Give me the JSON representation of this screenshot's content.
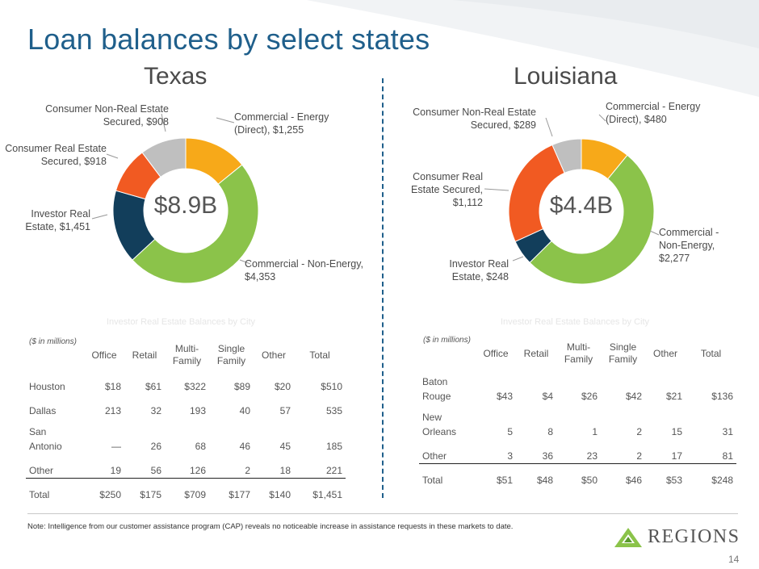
{
  "slide_title": "Loan balances by select states",
  "texas": {
    "title": "Texas",
    "center_label": "$8.9B",
    "chart_data": {
      "type": "pie",
      "slices": [
        {
          "label": "Commercial - Energy (Direct), $1,255",
          "value": 1255,
          "color": "#f7a919"
        },
        {
          "label": "Commercial - Non-Energy, $4,353",
          "value": 4353,
          "color": "#8bc34a"
        },
        {
          "label": "Investor Real Estate, $1,451",
          "value": 1451,
          "color": "#123e5b"
        },
        {
          "label": "Consumer Real Estate Secured, $918",
          "value": 918,
          "color": "#f15a22"
        },
        {
          "label": "Consumer Non-Real Estate Secured, $908",
          "value": 908,
          "color": "#bfbfbf"
        }
      ]
    },
    "labels": {
      "energy": [
        "Commercial - Energy",
        "(Direct), $1,255"
      ],
      "nonenergy": [
        "Commercial - Non-Energy,",
        "$4,353"
      ],
      "investor": [
        "Investor Real",
        "Estate, $1,451"
      ],
      "cre": [
        "Consumer Real Estate",
        "Secured, $918"
      ],
      "cnre": [
        "Consumer Non-Real Estate",
        "Secured, $908"
      ]
    },
    "table_caption": "Investor Real Estate Balances by City",
    "units": "($ in millions)",
    "headers": [
      "Office",
      "Retail",
      "Multi-\nFamily",
      "Single\nFamily",
      "Other",
      "Total"
    ],
    "rows": [
      {
        "city": [
          "Houston"
        ],
        "values": [
          "$18",
          "$61",
          "$322",
          "$89",
          "$20",
          "$510"
        ]
      },
      {
        "city": [
          "Dallas"
        ],
        "values": [
          "213",
          "32",
          "193",
          "40",
          "57",
          "535"
        ]
      },
      {
        "city": [
          "San",
          "Antonio"
        ],
        "values": [
          "—",
          "26",
          "68",
          "46",
          "45",
          "185"
        ]
      },
      {
        "city": [
          "Other"
        ],
        "values": [
          "19",
          "56",
          "126",
          "2",
          "18",
          "221"
        ]
      },
      {
        "city": [
          "Total"
        ],
        "values": [
          "$250",
          "$175",
          "$709",
          "$177",
          "$140",
          "$1,451"
        ]
      }
    ]
  },
  "louisiana": {
    "title": "Louisiana",
    "center_label": "$4.4B",
    "chart_data": {
      "type": "pie",
      "slices": [
        {
          "label": "Commercial - Energy (Direct), $480",
          "value": 480,
          "color": "#f7a919"
        },
        {
          "label": "Commercial - Non-Energy, $2,277",
          "value": 2277,
          "color": "#8bc34a"
        },
        {
          "label": "Investor Real Estate, $248",
          "value": 248,
          "color": "#123e5b"
        },
        {
          "label": "Consumer Real Estate Secured, $1,112",
          "value": 1112,
          "color": "#f15a22"
        },
        {
          "label": "Consumer Non-Real Estate Secured, $289",
          "value": 289,
          "color": "#bfbfbf"
        }
      ]
    },
    "labels": {
      "energy": [
        "Commercial - Energy",
        "(Direct), $480"
      ],
      "nonenergy": [
        "Commercial -",
        "Non-Energy,",
        "$2,277"
      ],
      "investor": [
        "Investor Real",
        "Estate, $248"
      ],
      "cre": [
        "Consumer Real",
        "Estate Secured,",
        "$1,112"
      ],
      "cnre": [
        "Consumer Non-Real Estate",
        "Secured, $289"
      ]
    },
    "table_caption": "Investor Real Estate Balances by City",
    "units": "($ in millions)",
    "headers": [
      "Office",
      "Retail",
      "Multi-\nFamily",
      "Single\nFamily",
      "Other",
      "Total"
    ],
    "rows": [
      {
        "city": [
          "Baton",
          "Rouge"
        ],
        "values": [
          "$43",
          "$4",
          "$26",
          "$42",
          "$21",
          "$136"
        ]
      },
      {
        "city": [
          "New",
          "Orleans"
        ],
        "values": [
          "5",
          "8",
          "1",
          "2",
          "15",
          "31"
        ]
      },
      {
        "city": [
          "Other"
        ],
        "values": [
          "3",
          "36",
          "23",
          "2",
          "17",
          "81"
        ]
      },
      {
        "city": [
          "Total"
        ],
        "values": [
          "$51",
          "$48",
          "$50",
          "$46",
          "$53",
          "$248"
        ]
      }
    ]
  },
  "note": "Note: Intelligence from our customer assistance program (CAP) reveals no noticeable increase in assistance requests in these markets to date.",
  "logo_text": "REGIONS",
  "page_number": "14"
}
